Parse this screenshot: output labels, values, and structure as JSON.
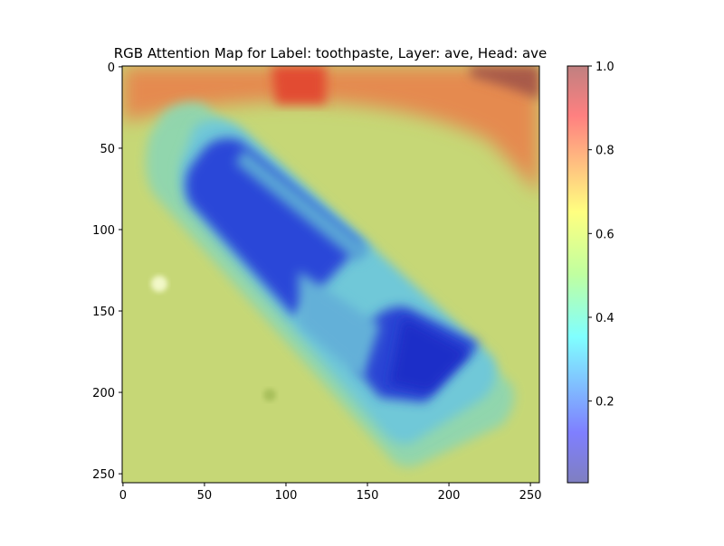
{
  "chart_data": {
    "type": "heatmap",
    "title": "RGB Attention Map for Label: toothpaste, Layer: ave, Head: ave",
    "xlabel": "",
    "ylabel": "",
    "xlim": [
      0,
      255
    ],
    "ylim": [
      255,
      0
    ],
    "x_ticks": [
      "0",
      "50",
      "100",
      "150",
      "200",
      "250"
    ],
    "y_ticks": [
      "0",
      "50",
      "100",
      "150",
      "200",
      "250"
    ],
    "x_tick_values": [
      0,
      50,
      100,
      150,
      200,
      250
    ],
    "y_tick_values": [
      0,
      50,
      100,
      150,
      200,
      250
    ],
    "colorbar": {
      "colormap": "jet",
      "alpha": 0.5,
      "range": [
        0.0,
        1.0
      ],
      "ticks": [
        "0.2",
        "0.4",
        "0.6",
        "0.8",
        "1.0"
      ],
      "tick_values": [
        0.2,
        0.4,
        0.6,
        0.8,
        1.0
      ]
    },
    "background_color": "#c8d870",
    "regions": [
      {
        "name": "top-band",
        "description_value": 0.85
      },
      {
        "name": "top-right-hotspot",
        "description_value": 0.95
      },
      {
        "name": "top-center-hotspot",
        "description_value": 1.0
      },
      {
        "name": "tube-label-upper",
        "description_value": 0.05
      },
      {
        "name": "tube-label-lower",
        "description_value": 0.05
      },
      {
        "name": "tube-body",
        "description_value": 0.4
      }
    ]
  }
}
